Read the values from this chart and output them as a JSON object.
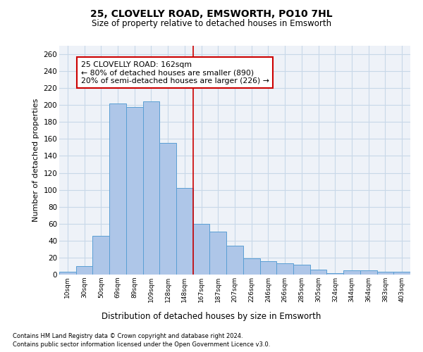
{
  "title_line1": "25, CLOVELLY ROAD, EMSWORTH, PO10 7HL",
  "title_line2": "Size of property relative to detached houses in Emsworth",
  "xlabel": "Distribution of detached houses by size in Emsworth",
  "ylabel": "Number of detached properties",
  "categories": [
    "10sqm",
    "30sqm",
    "50sqm",
    "69sqm",
    "89sqm",
    "109sqm",
    "128sqm",
    "148sqm",
    "167sqm",
    "187sqm",
    "207sqm",
    "226sqm",
    "246sqm",
    "266sqm",
    "285sqm",
    "305sqm",
    "324sqm",
    "344sqm",
    "364sqm",
    "383sqm",
    "403sqm"
  ],
  "values": [
    3,
    10,
    46,
    202,
    198,
    204,
    155,
    102,
    60,
    51,
    34,
    19,
    16,
    13,
    12,
    6,
    2,
    5,
    5,
    3,
    3
  ],
  "bar_color": "#aec6e8",
  "bar_edge_color": "#5a9fd4",
  "grid_color": "#c8d8e8",
  "vline_color": "#cc0000",
  "annotation_text": "25 CLOVELLY ROAD: 162sqm\n← 80% of detached houses are smaller (890)\n20% of semi-detached houses are larger (226) →",
  "annotation_box_color": "#cc0000",
  "footnote1": "Contains HM Land Registry data © Crown copyright and database right 2024.",
  "footnote2": "Contains public sector information licensed under the Open Government Licence v3.0.",
  "ylim": [
    0,
    270
  ],
  "yticks": [
    0,
    20,
    40,
    60,
    80,
    100,
    120,
    140,
    160,
    180,
    200,
    220,
    240,
    260
  ],
  "bg_color": "#eef2f8",
  "fig_bg_color": "#ffffff"
}
